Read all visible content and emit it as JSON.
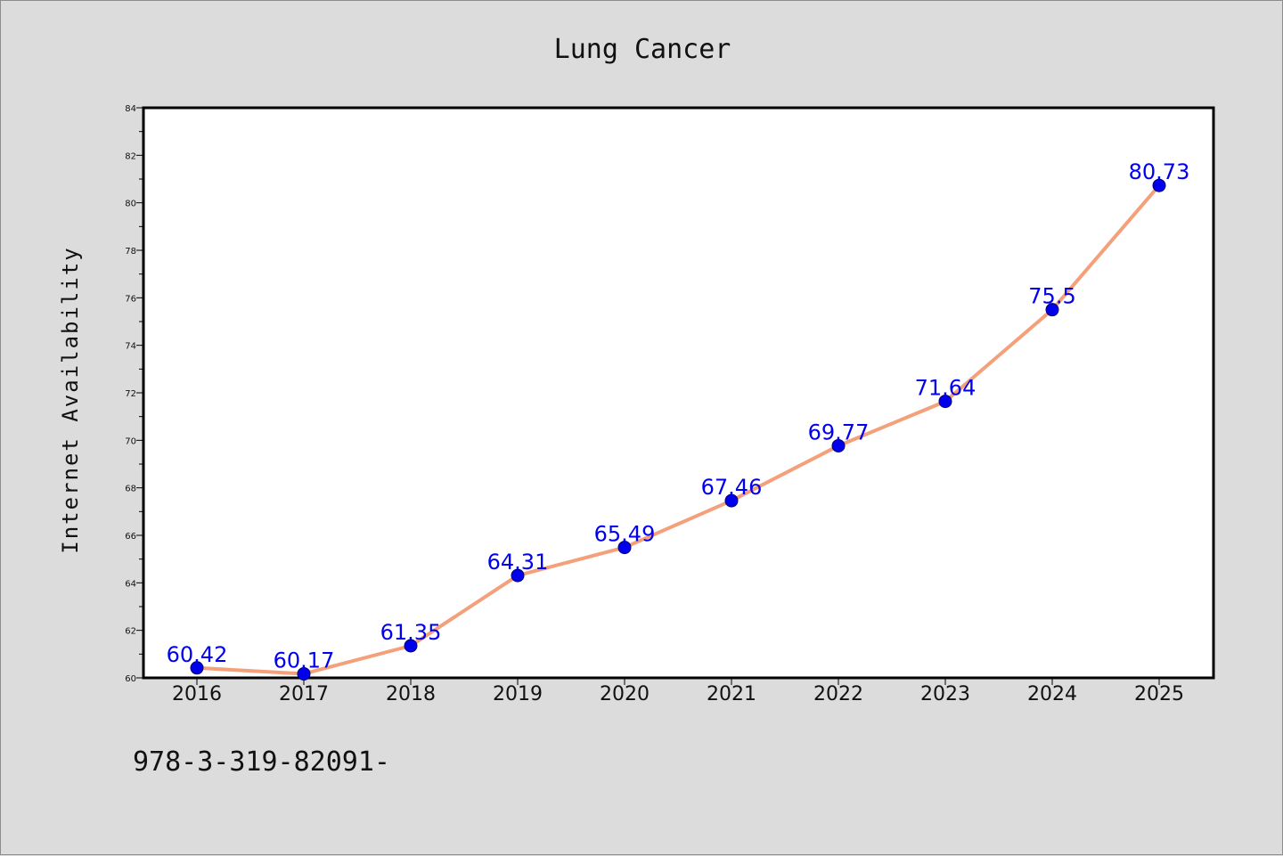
{
  "chart_data": {
    "type": "line",
    "title": "Lung Cancer",
    "xlabel": "",
    "ylabel": "Internet Availability",
    "categories": [
      "2016",
      "2017",
      "2018",
      "2019",
      "2020",
      "2021",
      "2022",
      "2023",
      "2024",
      "2025"
    ],
    "series": [
      {
        "values": [
          60.42,
          60.17,
          61.35,
          64.31,
          65.49,
          67.46,
          69.77,
          71.64,
          75.5,
          80.73
        ],
        "data_labels": [
          "60.42",
          "60.17",
          "61.35",
          "64.31",
          "65.49",
          "67.46",
          "69.77",
          "71.64",
          "75.5",
          "80.73"
        ],
        "line_color": "#f4a07a",
        "marker_color": "#0000ee"
      }
    ],
    "ylim": [
      60,
      84
    ],
    "yticks": [
      "60",
      "62",
      "64",
      "66",
      "68",
      "70",
      "72",
      "74",
      "76",
      "78",
      "80",
      "82",
      "84"
    ],
    "grid": false,
    "legend": "none"
  },
  "footer": {
    "text": "978-3-319-82091-"
  },
  "colors": {
    "background": "#dcdcdc",
    "plot_background": "#ffffff",
    "line": "#f4a07a",
    "marker": "#0000ee",
    "data_label": "#0000ee"
  }
}
